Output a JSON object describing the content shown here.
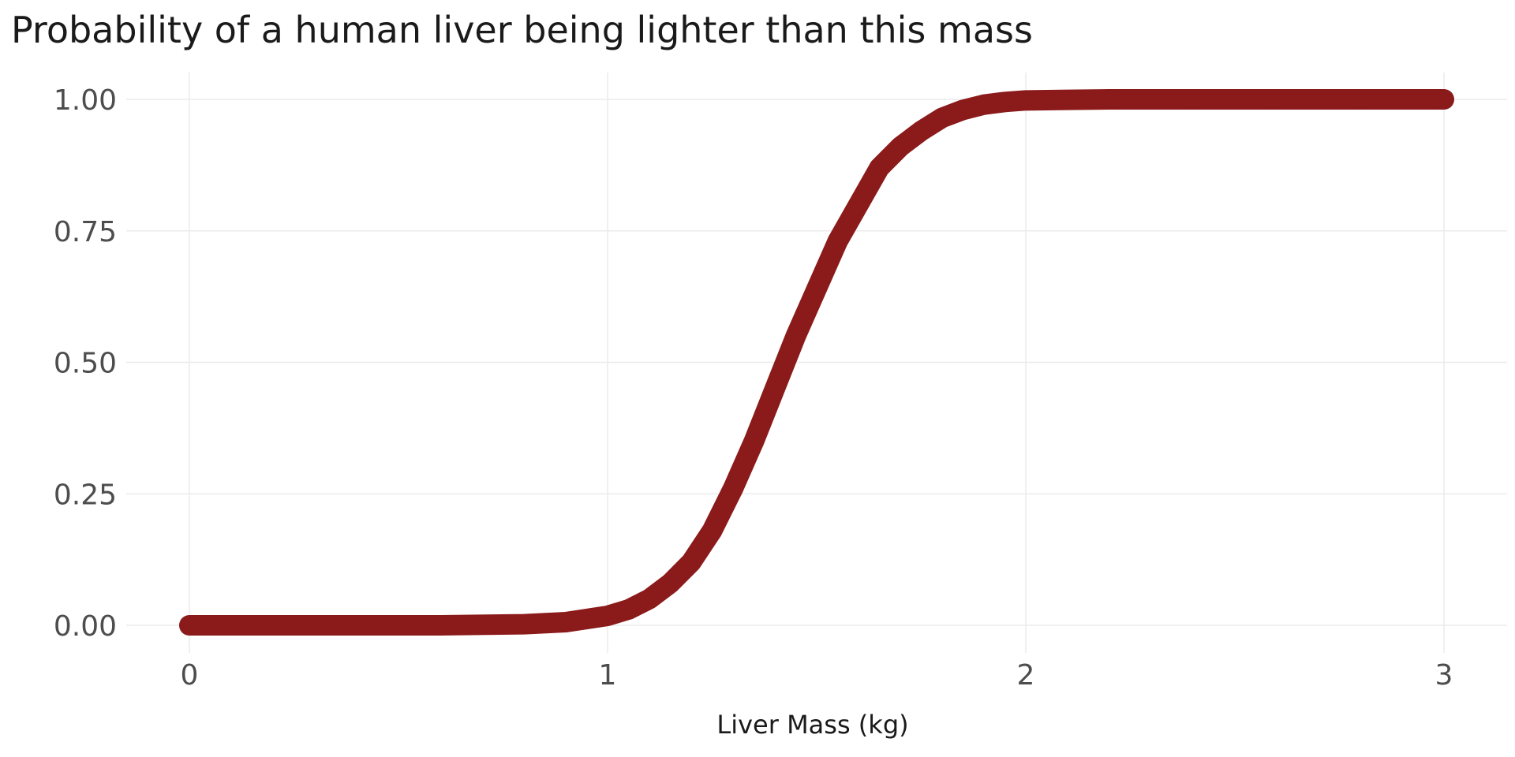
{
  "chart_data": {
    "type": "line",
    "title": "Probability of a human liver being lighter than this mass",
    "xlabel": "Liver Mass (kg)",
    "ylabel": "",
    "xlim": [
      0,
      3
    ],
    "ylim": [
      0,
      1
    ],
    "x_ticks": [
      0,
      1,
      2,
      3
    ],
    "x_tick_labels": [
      "0",
      "1",
      "2",
      "3"
    ],
    "y_ticks": [
      0,
      0.25,
      0.5,
      0.75,
      1
    ],
    "y_tick_labels": [
      "0.00",
      "0.25",
      "0.50",
      "0.75",
      "1.00"
    ],
    "grid": true,
    "legend": "none",
    "series_color": "#8b1a1a",
    "series": [
      {
        "x": [
          0,
          0.2,
          0.4,
          0.6,
          0.8,
          0.9,
          1.0,
          1.05,
          1.1,
          1.15,
          1.2,
          1.25,
          1.3,
          1.35,
          1.4,
          1.45,
          1.5,
          1.55,
          1.6,
          1.65,
          1.7,
          1.75,
          1.8,
          1.85,
          1.9,
          1.95,
          2.0,
          2.1,
          2.2,
          2.4,
          2.6,
          2.8,
          3.0
        ],
        "y": [
          0,
          0,
          0,
          0,
          0.002,
          0.006,
          0.018,
          0.03,
          0.05,
          0.08,
          0.12,
          0.18,
          0.26,
          0.35,
          0.45,
          0.55,
          0.64,
          0.73,
          0.8,
          0.87,
          0.91,
          0.94,
          0.965,
          0.98,
          0.99,
          0.995,
          0.998,
          0.999,
          1,
          1,
          1,
          1,
          1
        ]
      }
    ]
  }
}
